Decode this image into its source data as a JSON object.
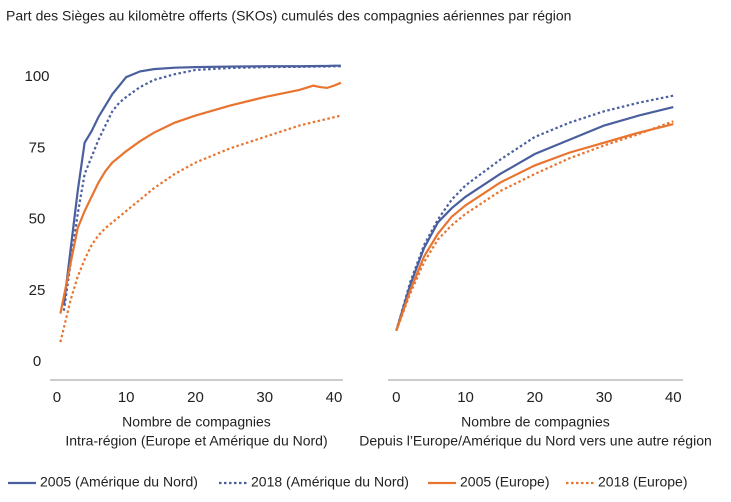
{
  "title": "Part des Sièges au kilomètre offerts (SKOs) cumulés des compagnies aériennes par région",
  "chart_data": [
    {
      "type": "line",
      "xlabel": "Nombre de compagnies",
      "xlabel_note": "Intra-région (Europe et Amérique du Nord)",
      "xlim": [
        -1,
        41.3
      ],
      "xticks": [
        0,
        10,
        20,
        30,
        40
      ],
      "ylim": [
        -6.3,
        106
      ],
      "yticks": [
        0,
        25,
        50,
        75,
        100
      ],
      "series": [
        {
          "name": "2005 (Amérique du Nord)",
          "color": "#4a5f9e",
          "style": "solid",
          "x": [
            1,
            2,
            3,
            4,
            5,
            6,
            7,
            8,
            9,
            10,
            12,
            14,
            17,
            20,
            25,
            30,
            35,
            38,
            39,
            40,
            41
          ],
          "values": [
            20,
            40,
            60,
            77,
            81,
            86,
            90,
            94,
            97,
            100,
            102,
            102.8,
            103.3,
            103.5,
            103.7,
            103.8,
            103.8,
            103.9,
            103.9,
            104,
            104
          ]
        },
        {
          "name": "2018 (Amérique du Nord)",
          "color": "#4a5f9e",
          "style": "dotted",
          "x": [
            1,
            2,
            3,
            4,
            5,
            6,
            7,
            8,
            9,
            10,
            12,
            14,
            17,
            20,
            25,
            30,
            35,
            38,
            39,
            40,
            41
          ],
          "values": [
            18,
            35,
            52,
            66,
            72,
            78,
            83,
            88,
            91,
            93,
            96.5,
            99,
            101,
            102.5,
            103.2,
            103.5,
            103.6,
            103.7,
            103.7,
            103.8,
            103.8
          ]
        },
        {
          "name": "2005 (Europe)",
          "color": "#e8742f",
          "style": "solid",
          "x": [
            0.5,
            2,
            3,
            4,
            5,
            6,
            7,
            8,
            9,
            10,
            12,
            14,
            17,
            20,
            25,
            30,
            35,
            37,
            38,
            39,
            40,
            41
          ],
          "values": [
            17,
            35,
            47,
            53,
            58,
            63,
            67,
            70,
            72,
            74,
            77.5,
            80.5,
            84,
            86.5,
            90,
            93,
            95.5,
            97,
            96.5,
            96.2,
            97,
            98
          ]
        },
        {
          "name": "2018 (Europe)",
          "color": "#e8742f",
          "style": "dotted",
          "x": [
            0.5,
            2,
            3,
            4,
            5,
            6,
            7,
            8,
            10,
            12,
            14,
            17,
            20,
            25,
            30,
            35,
            41
          ],
          "values": [
            7,
            22,
            30,
            36,
            41,
            44.5,
            47,
            49,
            53,
            57,
            61,
            66,
            70,
            75,
            79,
            83,
            86.5
          ]
        }
      ]
    },
    {
      "type": "line",
      "xlabel": "Nombre de compagnies",
      "xlabel_note": "Depuis l’Europe/Amérique du Nord vers une autre région",
      "xlim": [
        -1.2,
        41.4
      ],
      "xticks": [
        0,
        10,
        20,
        30,
        40
      ],
      "ylim": [
        -6.3,
        106
      ],
      "x": [
        0,
        2,
        4,
        6,
        8,
        10,
        15,
        20,
        25,
        30,
        35,
        40
      ],
      "series": [
        {
          "name": "2005 (Amérique du Nord)",
          "color": "#4a5f9e",
          "style": "solid",
          "values": [
            11,
            27,
            40,
            49,
            54,
            58,
            66,
            73,
            78,
            83,
            86.5,
            89.5
          ]
        },
        {
          "name": "2018 (Amérique du Nord)",
          "color": "#4a5f9e",
          "style": "dotted",
          "values": [
            11,
            28,
            41,
            50,
            57,
            62,
            71,
            79,
            84,
            88,
            91,
            93.5
          ]
        },
        {
          "name": "2005 (Europe)",
          "color": "#e8742f",
          "style": "solid",
          "values": [
            11,
            25,
            37,
            45,
            51,
            55,
            63,
            69,
            73.5,
            77,
            80.5,
            83.5
          ]
        },
        {
          "name": "2018 (Europe)",
          "color": "#e8742f",
          "style": "dotted",
          "values": [
            11,
            24,
            35,
            43,
            48,
            52,
            60,
            66,
            71.5,
            76,
            80,
            84.5
          ]
        }
      ]
    }
  ]
}
